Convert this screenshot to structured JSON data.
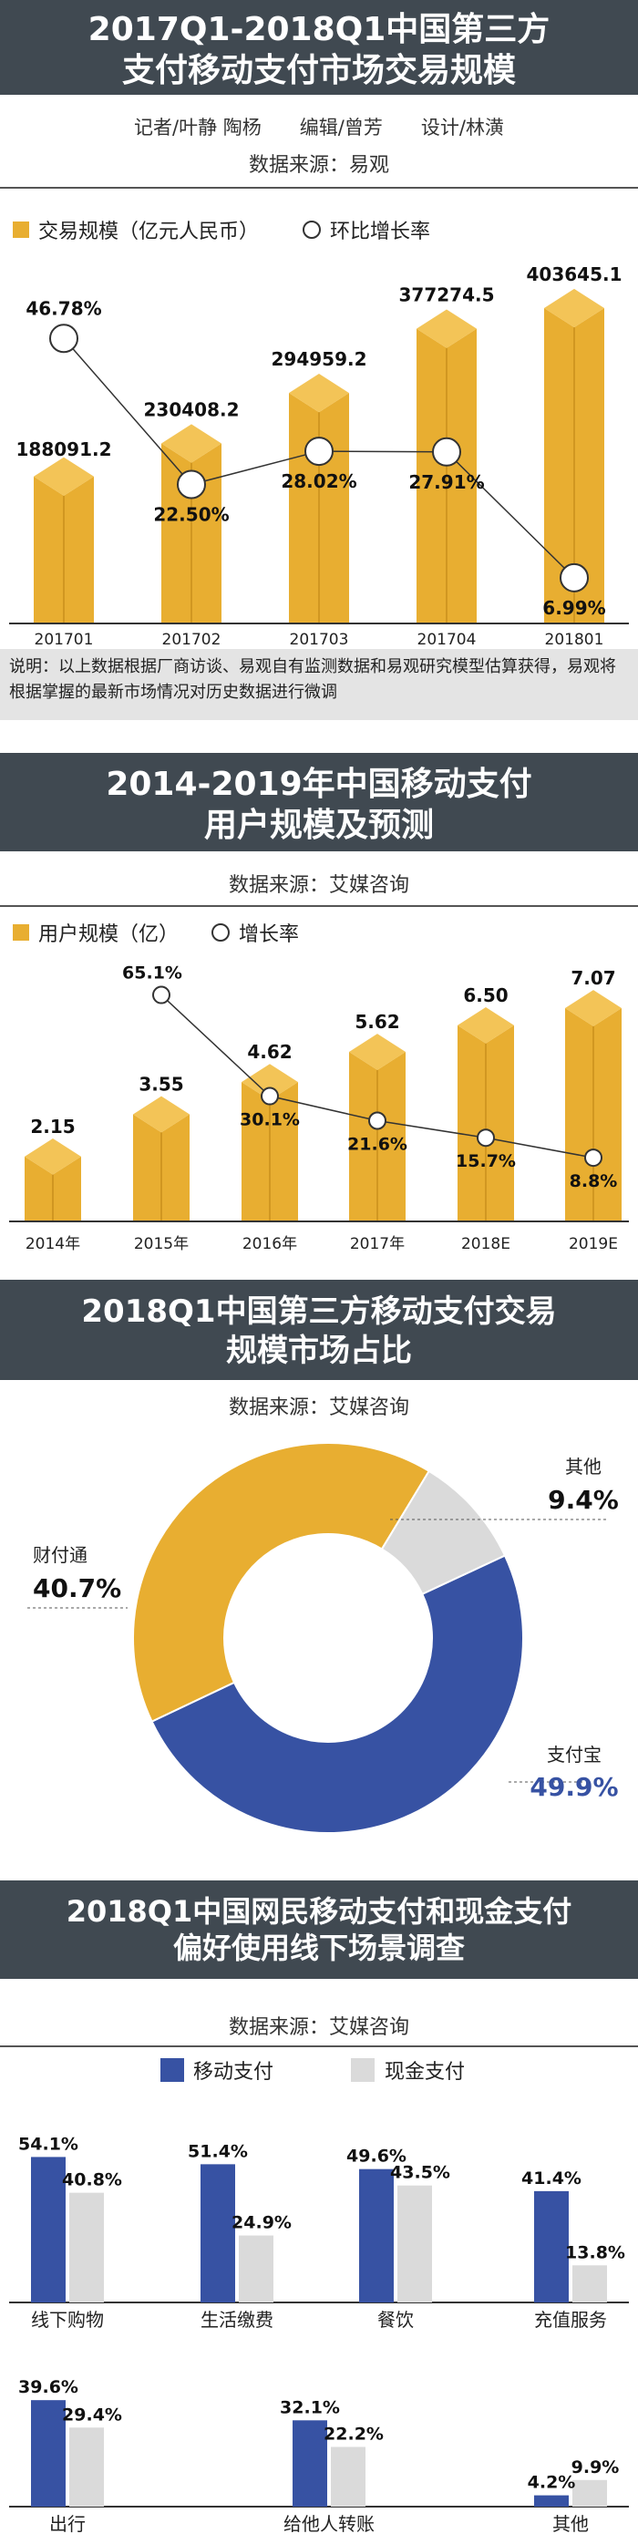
{
  "section1": {
    "title_line1": "2017Q1-2018Q1中国第三方",
    "title_line2": "支付移动支付市场交易规模",
    "credits": "记者/叶静 陶杨　　编辑/曾芳　　设计/林潢",
    "source": "数据来源：易观",
    "legend_bar": "交易规模（亿元人民币）",
    "legend_line": "环比增长率",
    "note": "说明：以上数据根据厂商访谈、易观自有监测数据和易观研究模型估算获得，易观将根据掌握的最新市场情况对历史数据进行微调"
  },
  "section2": {
    "title_line1": "2014-2019年中国移动支付",
    "title_line2": "用户规模及预测",
    "source": "数据来源：艾媒咨询",
    "legend_bar": "用户规模（亿）",
    "legend_line": "增长率"
  },
  "section3": {
    "title_line1": "2018Q1中国第三方移动支付交易",
    "title_line2": "规模市场占比",
    "source": "数据来源：艾媒咨询"
  },
  "section4": {
    "title_line1": "2018Q1中国网民移动支付和现金支付",
    "title_line2": "偏好使用线下场景调查",
    "source": "数据来源：艾媒咨询"
  },
  "colors": {
    "gold": "#E8AE31",
    "gold_dark": "#C98F1C",
    "gold_light": "#F3C457",
    "blue": "#3752A3",
    "gray": "#DADADA",
    "header": "#404951"
  },
  "chart_data": [
    {
      "type": "bar",
      "title": "2017Q1-2018Q1中国第三方支付移动支付市场交易规模",
      "categories": [
        "201701",
        "201702",
        "201703",
        "201704",
        "201801"
      ],
      "series": [
        {
          "name": "交易规模（亿元人民币）",
          "values": [
            188091.2,
            230408.2,
            294959.2,
            377274.5,
            403645.1
          ],
          "labels": [
            "188091.2",
            "230408.2",
            "294959.2",
            "377274.5",
            "403645.1"
          ]
        },
        {
          "name": "环比增长率",
          "type": "line",
          "values": [
            46.78,
            22.5,
            28.02,
            27.91,
            6.99
          ],
          "labels": [
            "46.78%",
            "22.50%",
            "28.02%",
            "27.91%",
            "6.99%"
          ]
        }
      ]
    },
    {
      "type": "bar",
      "title": "2014-2019年中国移动支付用户规模及预测",
      "categories": [
        "2014年",
        "2015年",
        "2016年",
        "2017年",
        "2018E",
        "2019E"
      ],
      "series": [
        {
          "name": "用户规模（亿）",
          "values": [
            2.15,
            3.55,
            4.62,
            5.62,
            6.5,
            7.07
          ],
          "labels": [
            "2.15",
            "3.55",
            "4.62",
            "5.62",
            "6.50",
            "7.07"
          ]
        },
        {
          "name": "增长率",
          "type": "line",
          "values": [
            null,
            65.1,
            30.1,
            21.6,
            15.7,
            8.8
          ],
          "labels": [
            "",
            "65.1%",
            "30.1%",
            "21.6%",
            "15.7%",
            "8.8%"
          ]
        }
      ]
    },
    {
      "type": "pie",
      "title": "2018Q1中国第三方移动支付交易规模市场占比",
      "slices": [
        {
          "name": "支付宝",
          "value": 49.9,
          "label": "49.9%"
        },
        {
          "name": "财付通",
          "value": 40.7,
          "label": "40.7%"
        },
        {
          "name": "其他",
          "value": 9.4,
          "label": "9.4%"
        }
      ]
    },
    {
      "type": "bar",
      "title": "2018Q1中国网民移动支付和现金支付偏好使用线下场景调查",
      "categories": [
        "线下购物",
        "生活缴费",
        "餐饮",
        "充值服务",
        "出行",
        "给他人转账",
        "其他"
      ],
      "series": [
        {
          "name": "移动支付",
          "values": [
            54.1,
            51.4,
            49.6,
            41.4,
            39.6,
            32.1,
            4.2
          ],
          "labels": [
            "54.1%",
            "51.4%",
            "49.6%",
            "41.4%",
            "39.6%",
            "32.1%",
            "4.2%"
          ]
        },
        {
          "name": "现金支付",
          "values": [
            40.8,
            24.9,
            43.5,
            13.8,
            29.4,
            22.2,
            9.9
          ],
          "labels": [
            "40.8%",
            "24.9%",
            "43.5%",
            "13.8%",
            "29.4%",
            "22.2%",
            "9.9%"
          ]
        }
      ]
    }
  ]
}
